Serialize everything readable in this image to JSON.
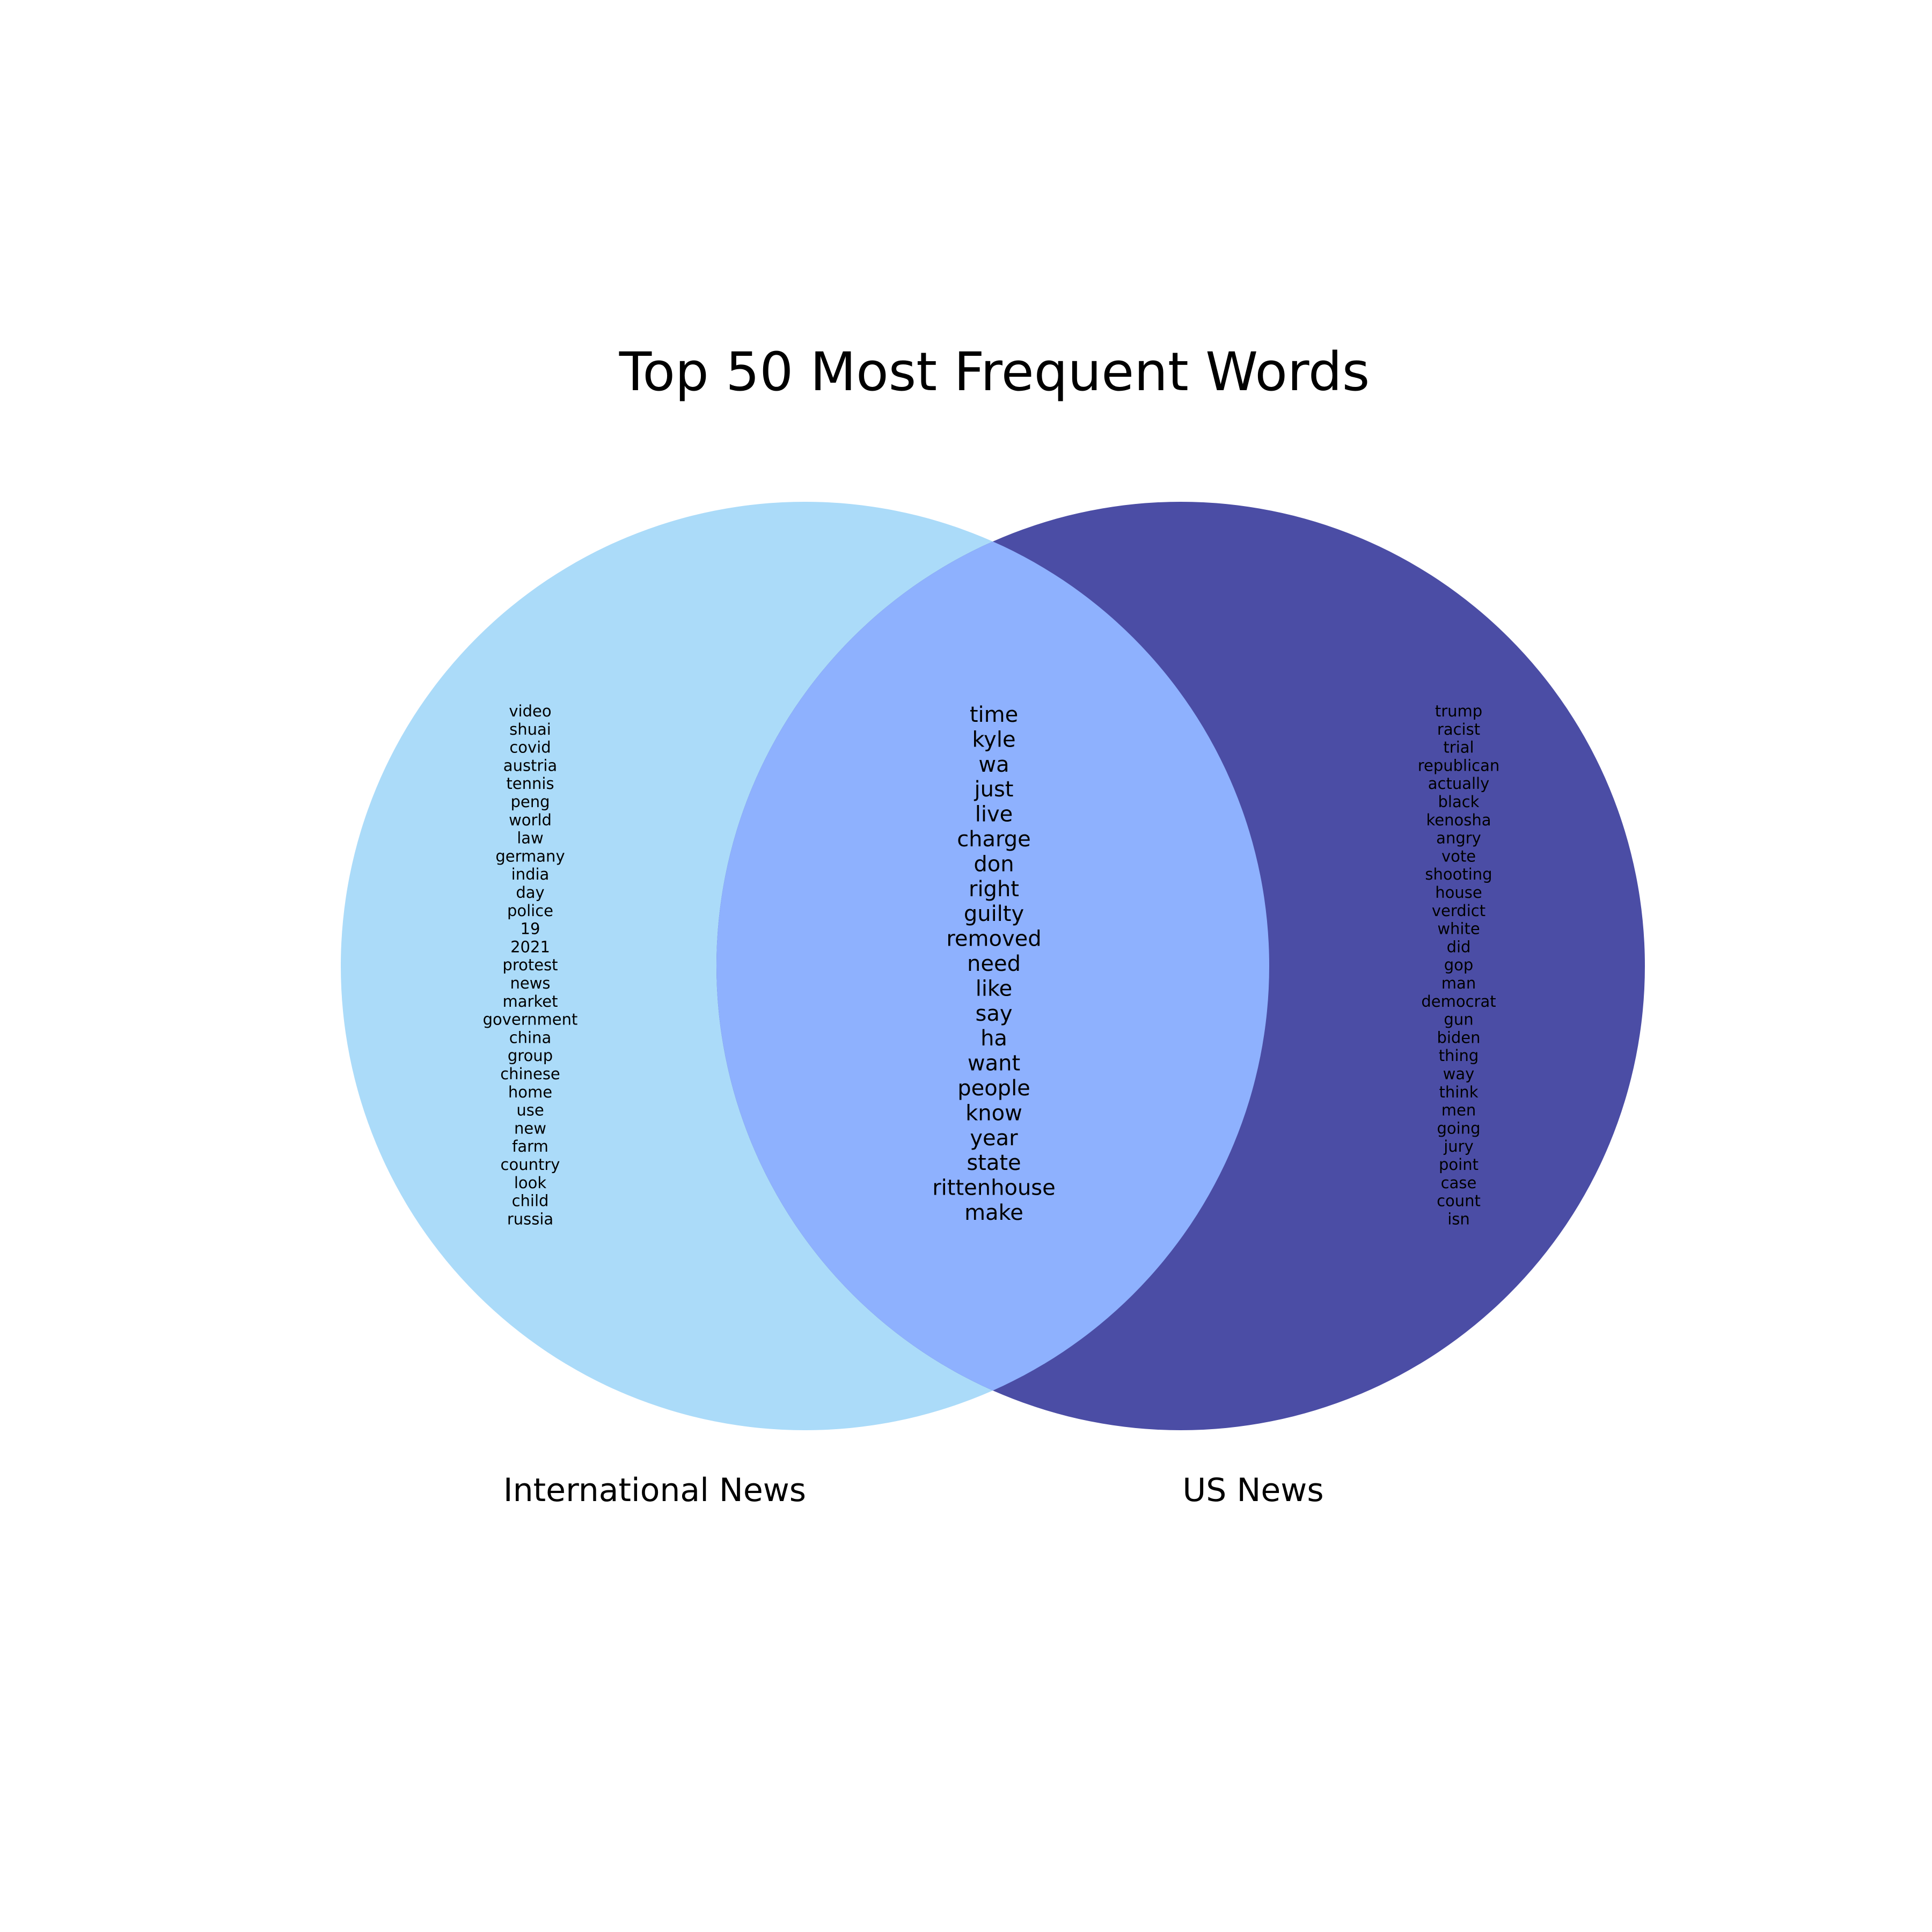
{
  "title": "Top 50 Most Frequent Words",
  "colors": {
    "left_set": "#abdbf9",
    "right_set": "#4b4da5",
    "overlap": "#8eb1fe",
    "text": "#000000",
    "background": "#ffffff"
  },
  "sets": {
    "left": {
      "label": "International News"
    },
    "right": {
      "label": "US News"
    }
  },
  "words": {
    "left_only": [
      "video",
      "shuai",
      "covid",
      "austria",
      "tennis",
      "peng",
      "world",
      "law",
      "germany",
      "india",
      "day",
      "police",
      "19",
      "2021",
      "protest",
      "news",
      "market",
      "government",
      "china",
      "group",
      "chinese",
      "home",
      "use",
      "new",
      "farm",
      "country",
      "look",
      "child",
      "russia"
    ],
    "shared": [
      "time",
      "kyle",
      "wa",
      "just",
      "live",
      "charge",
      "don",
      "right",
      "guilty",
      "removed",
      "need",
      "like",
      "say",
      "ha",
      "want",
      "people",
      "know",
      "year",
      "state",
      "rittenhouse",
      "make"
    ],
    "right_only": [
      "trump",
      "racist",
      "trial",
      "republican",
      "actually",
      "black",
      "kenosha",
      "angry",
      "vote",
      "shooting",
      "house",
      "verdict",
      "white",
      "did",
      "gop",
      "man",
      "democrat",
      "gun",
      "biden",
      "thing",
      "way",
      "think",
      "men",
      "going",
      "jury",
      "point",
      "case",
      "count",
      "isn"
    ]
  }
}
